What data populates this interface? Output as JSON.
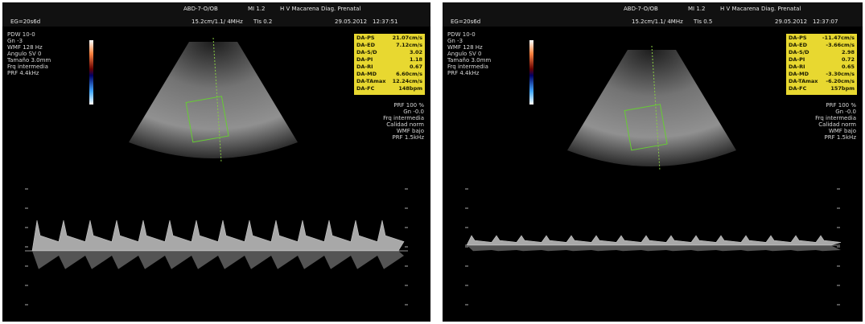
{
  "panels": [
    {
      "header": {
        "probe": "ABD-7-O/OB",
        "mi": "MI 1.2",
        "site": "H V Macarena Diag. Prenatal",
        "ga": "EG=20s6d",
        "depth": "15.2cm/1.1/ 4MHz",
        "tis": "TIs 0.2",
        "date": "29.05.2012",
        "time": "12:37:51"
      },
      "settings": [
        "PDW 10-0",
        "Gn -3",
        "WMF 128 Hz",
        "Angulo SV 0",
        "Tamaño 3.0mm",
        "Frq intermedia",
        "PRF 4.4kHz"
      ],
      "color_settings": [
        "PRF 100 %",
        "Gn -0.0",
        "Frq intermedia",
        "Calidad norm",
        "WMF bajo",
        "PRF 1.5kHz"
      ],
      "measurements": [
        [
          "DA-PS",
          "21.07cm/s"
        ],
        [
          "DA-ED",
          "7.12cm/s"
        ],
        [
          "DA-S/D",
          "3.02"
        ],
        [
          "DA-PI",
          "1.18"
        ],
        [
          "DA-RI",
          "0.67"
        ],
        [
          "DA-MD",
          "6.60cm/s"
        ],
        [
          "DA-TAmax",
          "12.24cm/s"
        ],
        [
          "DA-FC",
          "148bpm"
        ]
      ]
    },
    {
      "header": {
        "probe": "ABD-7-O/OB",
        "mi": "MI 1.2",
        "site": "H V Macarena Diag. Prenatal",
        "ga": "EG=20s6d",
        "depth": "15.2cm/1.1/ 4MHz",
        "tis": "TIs 0.5",
        "date": "29.05.2012",
        "time": "12:37:07"
      },
      "settings": [
        "PDW 10-0",
        "Gn -3",
        "WMF 128 Hz",
        "Angulo SV 0",
        "Tamaño 3.0mm",
        "Frq intermedia",
        "PRF 4.4kHz"
      ],
      "color_settings": [
        "PRF 100 %",
        "Gn -0.0",
        "Frq intermedia",
        "Calidad norm",
        "WMF bajo",
        "PRF 1.5kHz"
      ],
      "measurements": [
        [
          "DA-PS",
          "-11.47cm/s"
        ],
        [
          "DA-ED",
          "-3.66cm/s"
        ],
        [
          "DA-S/D",
          "2.98"
        ],
        [
          "DA-PI",
          "0.72"
        ],
        [
          "DA-RI",
          "0.65"
        ],
        [
          "DA-MD",
          "-3.30cm/s"
        ],
        [
          "DA-TAmax",
          "-6.20cm/s"
        ],
        [
          "DA-FC",
          "157bpm"
        ]
      ]
    }
  ]
}
